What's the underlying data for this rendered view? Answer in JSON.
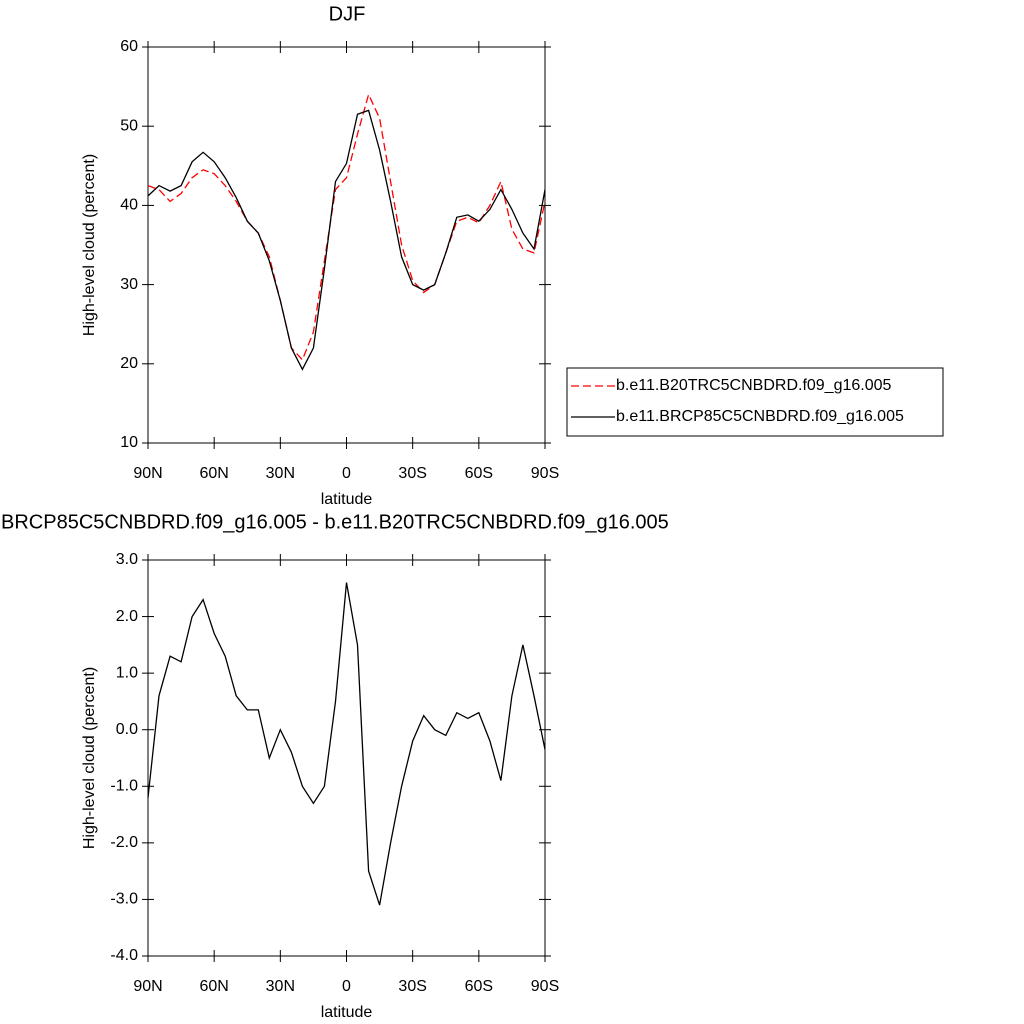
{
  "chart_data": [
    {
      "type": "line",
      "title": "DJF",
      "xlabel": "latitude",
      "ylabel": "High-level cloud (percent)",
      "x": [
        90,
        85,
        80,
        75,
        70,
        65,
        60,
        55,
        50,
        45,
        40,
        35,
        30,
        25,
        20,
        15,
        10,
        5,
        0,
        -5,
        -10,
        -15,
        -20,
        -25,
        -30,
        -35,
        -40,
        -45,
        -50,
        -55,
        -60,
        -65,
        -70,
        -75,
        -80,
        -85,
        -90
      ],
      "series": [
        {
          "name": "b.e11.B20TRC5CNBDRD.f09_g16.005",
          "color": "#ff0000",
          "style": "dashed",
          "values": [
            42.5,
            42.0,
            40.5,
            41.5,
            43.5,
            44.5,
            44.0,
            42.5,
            40.5,
            38.0,
            36.5,
            33.5,
            28,
            22,
            20.5,
            24,
            33,
            42,
            43.5,
            49,
            54,
            51,
            43,
            35,
            30.5,
            29,
            30,
            34,
            38,
            38.5,
            37.8,
            40,
            43,
            37,
            34.5,
            34,
            40.5
          ]
        },
        {
          "name": "b.e11.BRCP85C5CNBDRD.f09_g16.005",
          "color": "#000000",
          "style": "solid",
          "values": [
            41.2,
            42.5,
            41.8,
            42.5,
            45.5,
            46.7,
            45.5,
            43.5,
            41,
            38,
            36.5,
            33,
            28,
            22,
            19.3,
            22,
            32,
            43,
            45.3,
            51.5,
            52,
            47,
            40.5,
            33.5,
            30,
            29.3,
            30,
            34,
            38.5,
            38.8,
            38,
            39.5,
            42,
            39.5,
            36.5,
            34.5,
            42
          ]
        }
      ],
      "xlim": [
        90,
        -90
      ],
      "xticks": [
        {
          "value": 90,
          "label": "90N"
        },
        {
          "value": 60,
          "label": "60N"
        },
        {
          "value": 30,
          "label": "30N"
        },
        0,
        {
          "value": -30,
          "label": "30S"
        },
        {
          "value": -60,
          "label": "60S"
        },
        {
          "value": -90,
          "label": "90S"
        }
      ],
      "ylim": [
        10,
        60
      ],
      "yticks": [
        10,
        20,
        30,
        40,
        50,
        60
      ],
      "legend": "outside-right"
    },
    {
      "type": "line",
      "title": "BRCP85C5CNBDRD.f09_g16.005 - b.e11.B20TRC5CNBDRD.f09_g16.005",
      "xlabel": "latitude",
      "ylabel": "High-level cloud (percent)",
      "x": [
        90,
        85,
        80,
        75,
        70,
        65,
        60,
        55,
        50,
        45,
        40,
        35,
        30,
        25,
        20,
        15,
        10,
        5,
        0,
        -5,
        -10,
        -15,
        -20,
        -25,
        -30,
        -35,
        -40,
        -45,
        -50,
        -55,
        -60,
        -65,
        -70,
        -75,
        -80,
        -85,
        -90
      ],
      "color": "#000000",
      "values": [
        -1.2,
        0.6,
        1.3,
        1.2,
        2.0,
        2.3,
        1.7,
        1.3,
        0.6,
        0.35,
        0.35,
        -0.5,
        0.0,
        -0.4,
        -1.0,
        -1.3,
        -1.0,
        0.5,
        2.6,
        1.5,
        -2.5,
        -3.1,
        -2.0,
        -1.0,
        -0.2,
        0.25,
        0.0,
        -0.1,
        0.3,
        0.2,
        0.3,
        -0.2,
        -0.9,
        0.6,
        1.5,
        0.6,
        -0.35
      ],
      "xlim": [
        90,
        -90
      ],
      "xticks": [
        {
          "value": 90,
          "label": "90N"
        },
        {
          "value": 60,
          "label": "60N"
        },
        {
          "value": 30,
          "label": "30N"
        },
        0,
        {
          "value": -30,
          "label": "30S"
        },
        {
          "value": -60,
          "label": "60S"
        },
        {
          "value": -90,
          "label": "90S"
        }
      ],
      "ylim": [
        -4,
        3
      ],
      "yticks": [
        {
          "value": -4,
          "label": "-4.0"
        },
        {
          "value": -3,
          "label": "-3.0"
        },
        {
          "value": -2,
          "label": "-2.0"
        },
        {
          "value": -1,
          "label": "-1.0"
        },
        {
          "value": 0,
          "label": "0.0"
        },
        {
          "value": 1,
          "label": "1.0"
        },
        {
          "value": 2,
          "label": "2.0"
        },
        {
          "value": 3,
          "label": "3.0"
        }
      ]
    }
  ]
}
